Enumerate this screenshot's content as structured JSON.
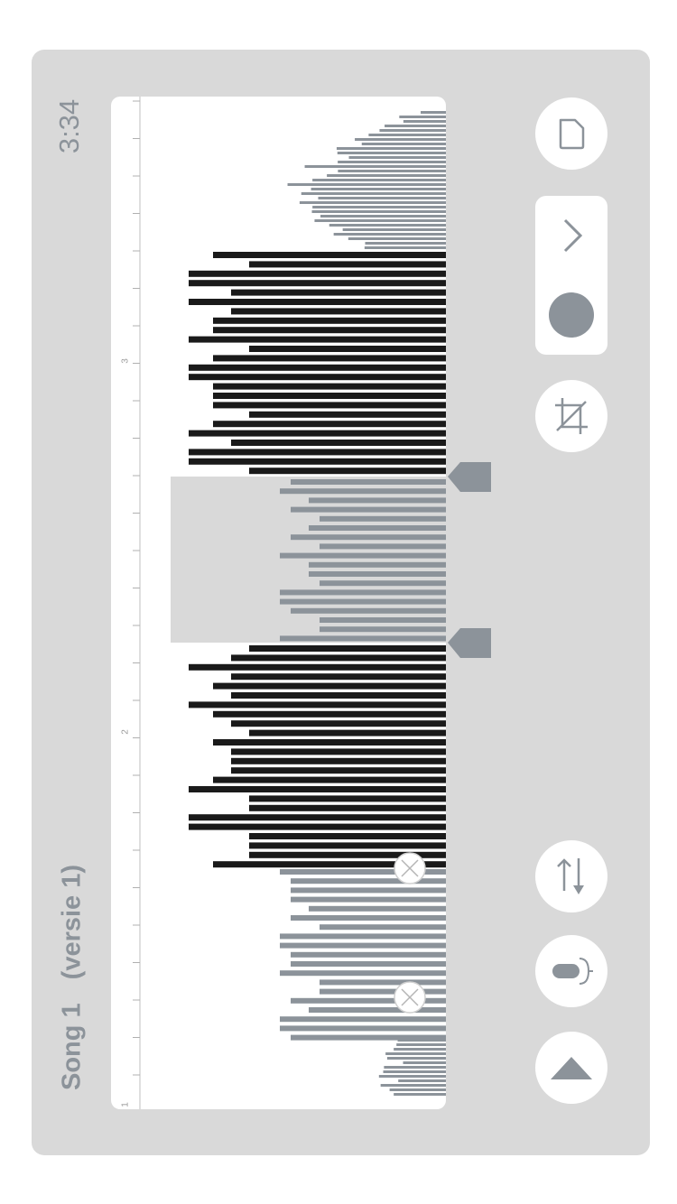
{
  "header": {
    "time": "3:34",
    "song_title": "Song 1",
    "version_label": "(versie 1)"
  },
  "ruler": {
    "labels": [
      "1",
      "2",
      "3"
    ]
  },
  "toolbar": {
    "new_icon": "page-icon",
    "next_icon": "chevron-right-icon",
    "record_icon": "record-dot-icon",
    "crop_icon": "crop-icon",
    "swap_icon": "swap-arrows-icon",
    "mic_icon": "microphone-icon",
    "eject_icon": "triangle-up-icon"
  },
  "colors": {
    "panel": "#d9d9d9",
    "bar_dark": "#1a1a1a",
    "bar_gray": "#8c939a",
    "selection": "#d9d9d9",
    "accent_text": "#8c939a"
  }
}
